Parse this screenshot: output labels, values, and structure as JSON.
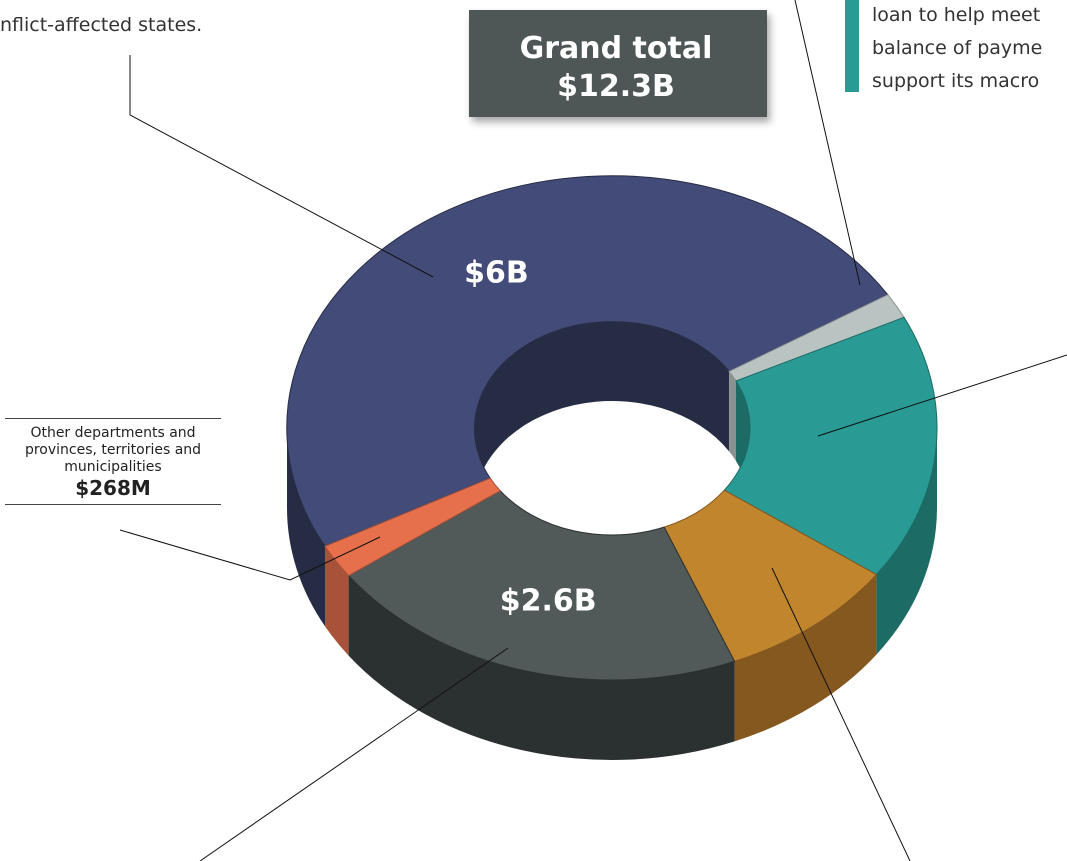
{
  "chart_data": {
    "type": "donut3d",
    "title": "Grand total",
    "total_label": "$12.3B",
    "categories": [
      null,
      null,
      null,
      null,
      null,
      "Other departments and provinces, territories and municipalities"
    ],
    "values": [
      6,
      0.2,
      2.1,
      1.1,
      2.6,
      0.268
    ],
    "value_labels": [
      "$6B",
      null,
      null,
      null,
      "$2.6B",
      "$268M"
    ],
    "colors": [
      "#434b78",
      "#b9c3c2",
      "#2a9a94",
      "#c0852d",
      "#515a58",
      "#e5704b"
    ],
    "wall_colors": [
      "#272c45",
      "#8a9290",
      "#1d6b65",
      "#84581f",
      "#2b3130",
      "#a8523a"
    ],
    "annotations": [
      "nflict-affected states.",
      "loan to help meet",
      "balance of payme",
      "support its macro"
    ]
  }
}
